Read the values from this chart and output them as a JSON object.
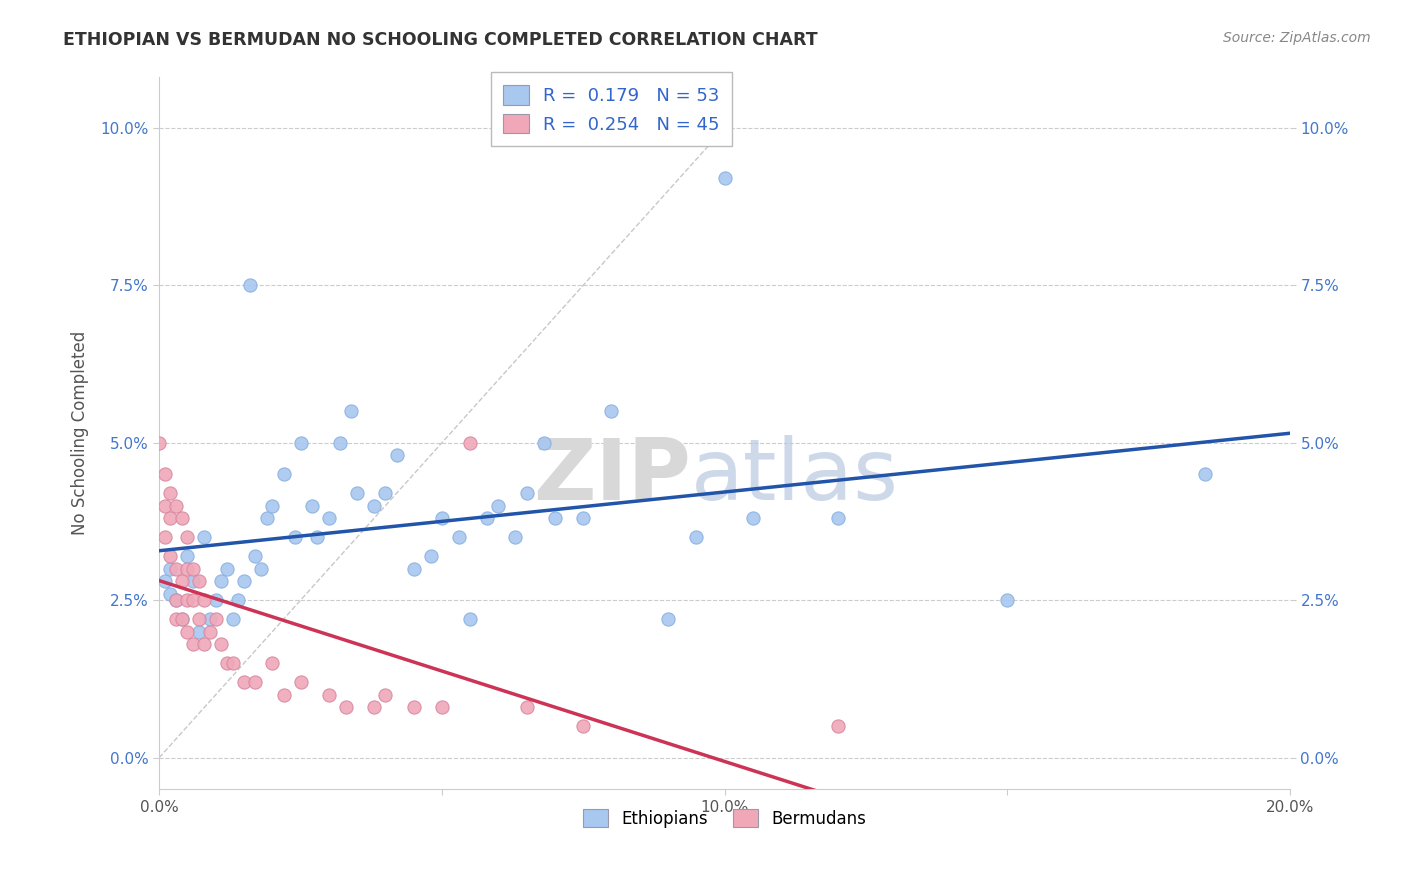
{
  "title": "ETHIOPIAN VS BERMUDAN NO SCHOOLING COMPLETED CORRELATION CHART",
  "source": "Source: ZipAtlas.com",
  "ylabel": "No Schooling Completed",
  "xlabel": "",
  "xlim": [
    0.0,
    0.2
  ],
  "ylim": [
    -0.005,
    0.108
  ],
  "yticks": [
    0.0,
    0.025,
    0.05,
    0.075,
    0.1
  ],
  "ytick_labels": [
    "0.0%",
    "2.5%",
    "5.0%",
    "7.5%",
    "10.0%"
  ],
  "xticks": [
    0.0,
    0.05,
    0.1,
    0.15,
    0.2
  ],
  "xtick_labels": [
    "0.0%",
    "",
    "10.0%",
    "",
    "20.0%"
  ],
  "legend_r_blue": "0.179",
  "legend_n_blue": "53",
  "legend_r_pink": "0.254",
  "legend_n_pink": "45",
  "blue_color": "#a8c8f0",
  "pink_color": "#f0a8b8",
  "blue_line_color": "#2255aa",
  "pink_line_color": "#cc3355",
  "pink_dash_color": "#e08898",
  "diagonal_color": "#c8c8c8",
  "background_color": "#ffffff",
  "watermark_zip": "ZIP",
  "watermark_atlas": "atlas",
  "title_color": "#333333",
  "source_color": "#888888",
  "tick_color_y": "#4477cc",
  "tick_color_x": "#555555",
  "ethiopians_x": [
    0.001,
    0.002,
    0.002,
    0.003,
    0.004,
    0.005,
    0.006,
    0.007,
    0.008,
    0.009,
    0.01,
    0.011,
    0.012,
    0.013,
    0.014,
    0.015,
    0.016,
    0.017,
    0.018,
    0.019,
    0.02,
    0.022,
    0.024,
    0.025,
    0.027,
    0.028,
    0.03,
    0.032,
    0.034,
    0.035,
    0.038,
    0.04,
    0.042,
    0.045,
    0.048,
    0.05,
    0.053,
    0.055,
    0.058,
    0.06,
    0.063,
    0.065,
    0.068,
    0.07,
    0.075,
    0.08,
    0.09,
    0.095,
    0.1,
    0.105,
    0.12,
    0.15,
    0.185
  ],
  "ethiopians_y": [
    0.028,
    0.026,
    0.03,
    0.025,
    0.022,
    0.032,
    0.028,
    0.02,
    0.035,
    0.022,
    0.025,
    0.028,
    0.03,
    0.022,
    0.025,
    0.028,
    0.075,
    0.032,
    0.03,
    0.038,
    0.04,
    0.045,
    0.035,
    0.05,
    0.04,
    0.035,
    0.038,
    0.05,
    0.055,
    0.042,
    0.04,
    0.042,
    0.048,
    0.03,
    0.032,
    0.038,
    0.035,
    0.022,
    0.038,
    0.04,
    0.035,
    0.042,
    0.05,
    0.038,
    0.038,
    0.055,
    0.022,
    0.035,
    0.092,
    0.038,
    0.038,
    0.025,
    0.045
  ],
  "bermudans_x": [
    0.0,
    0.001,
    0.001,
    0.001,
    0.002,
    0.002,
    0.002,
    0.003,
    0.003,
    0.003,
    0.003,
    0.004,
    0.004,
    0.004,
    0.005,
    0.005,
    0.005,
    0.005,
    0.006,
    0.006,
    0.006,
    0.007,
    0.007,
    0.008,
    0.008,
    0.009,
    0.01,
    0.011,
    0.012,
    0.013,
    0.015,
    0.017,
    0.02,
    0.022,
    0.025,
    0.03,
    0.033,
    0.038,
    0.04,
    0.045,
    0.05,
    0.055,
    0.065,
    0.075,
    0.12
  ],
  "bermudans_y": [
    0.05,
    0.045,
    0.04,
    0.035,
    0.042,
    0.038,
    0.032,
    0.04,
    0.03,
    0.025,
    0.022,
    0.038,
    0.028,
    0.022,
    0.035,
    0.03,
    0.025,
    0.02,
    0.03,
    0.025,
    0.018,
    0.028,
    0.022,
    0.025,
    0.018,
    0.02,
    0.022,
    0.018,
    0.015,
    0.015,
    0.012,
    0.012,
    0.015,
    0.01,
    0.012,
    0.01,
    0.008,
    0.008,
    0.01,
    0.008,
    0.008,
    0.05,
    0.008,
    0.005,
    0.005
  ]
}
